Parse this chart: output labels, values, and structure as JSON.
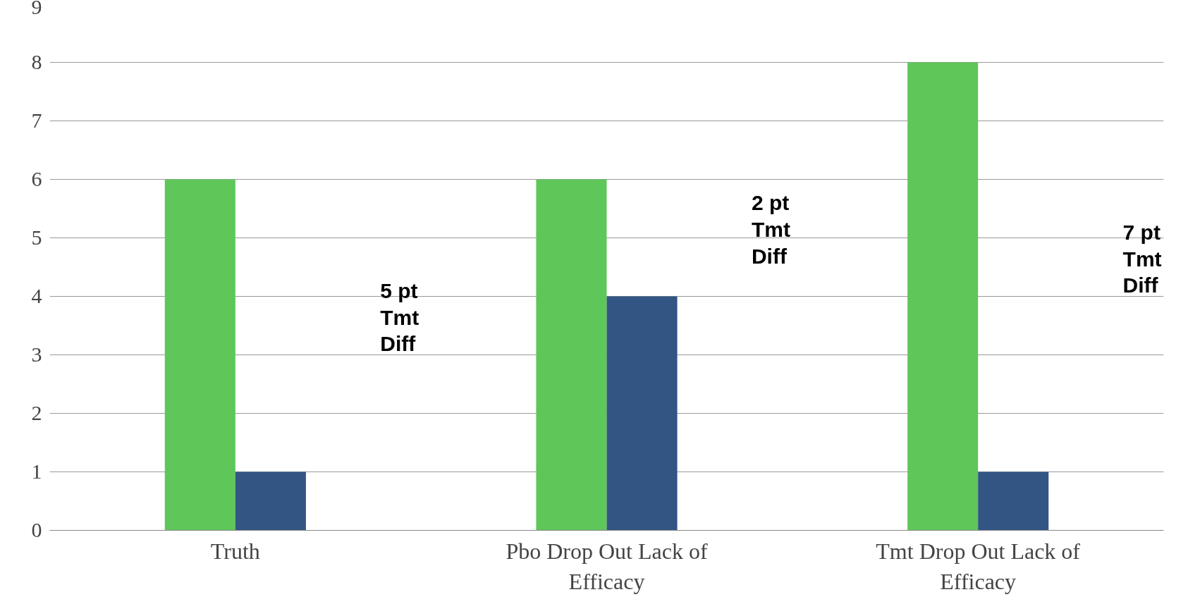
{
  "chart_data": {
    "type": "bar",
    "categories": [
      "Truth",
      "Pbo Drop Out Lack of Efficacy",
      "Tmt Drop Out Lack of Efficacy"
    ],
    "series": [
      {
        "color": "#5fc65a",
        "values": [
          6,
          6,
          8
        ]
      },
      {
        "color": "#335584",
        "values": [
          1,
          4,
          1
        ]
      }
    ],
    "ylim": [
      0,
      9
    ],
    "yticks": [
      0,
      1,
      2,
      3,
      4,
      5,
      6,
      7,
      8,
      9
    ],
    "grid": "y",
    "annotations": [
      "5 pt Tmt Diff",
      "2 pt Tmt Diff",
      "7 pt Tmt Diff"
    ]
  }
}
